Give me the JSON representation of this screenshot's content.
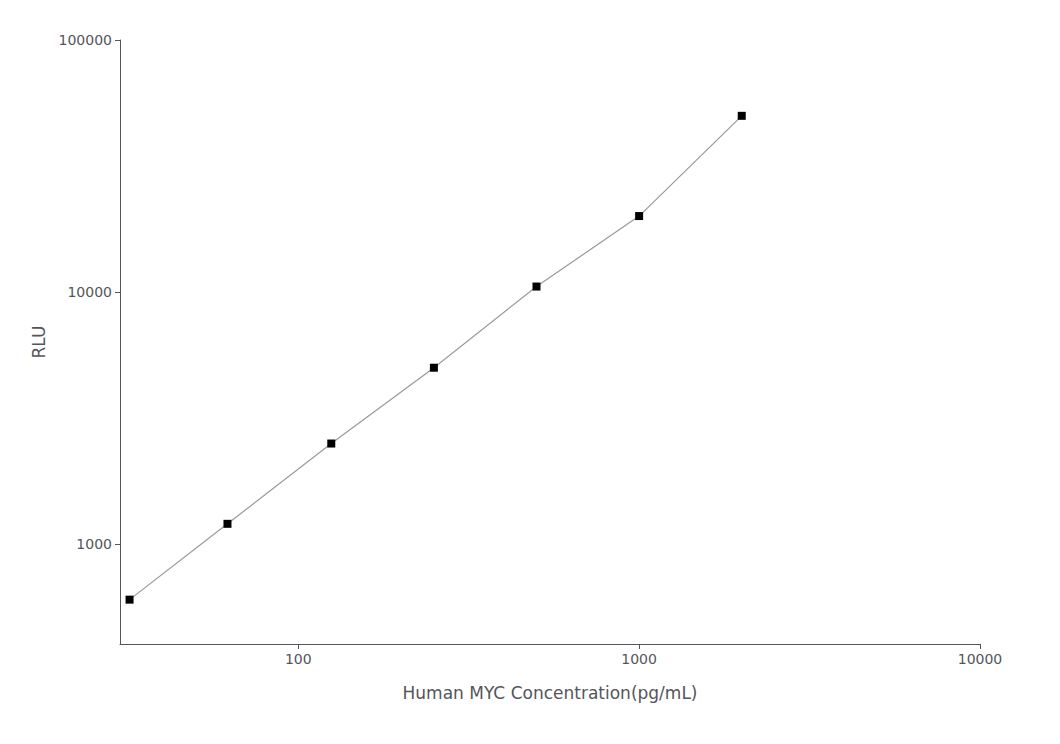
{
  "chart_data": {
    "type": "line",
    "x": [
      32,
      62,
      125,
      250,
      500,
      1000,
      2000
    ],
    "values": [
      600,
      1200,
      2500,
      5000,
      10500,
      20000,
      50000
    ],
    "xlabel": "Human MYC Concentration(pg/mL)",
    "ylabel": "RLU",
    "xlim": [
      30,
      10000
    ],
    "ylim": [
      400,
      100000
    ],
    "xticks": [
      100,
      1000,
      10000
    ],
    "yticks": [
      1000,
      10000,
      100000
    ],
    "log": true,
    "grid": false,
    "color": "#999999",
    "colors": [
      "#000000",
      "#000000",
      "#000000",
      "#000000",
      "#000000",
      "#000000",
      "#000000"
    ],
    "marker": "square",
    "line_style": "solid"
  }
}
